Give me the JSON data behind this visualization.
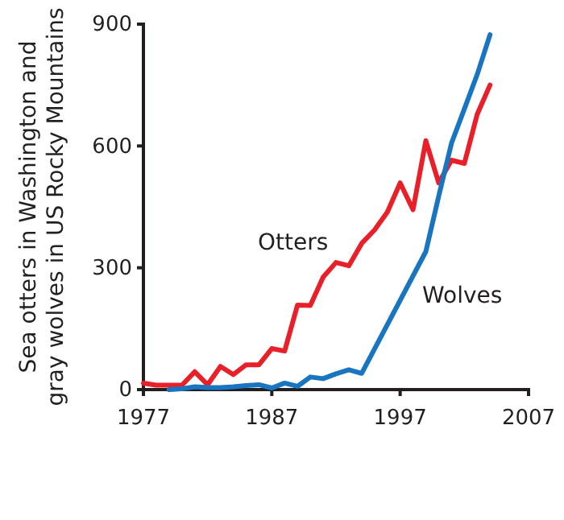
{
  "chart_data": {
    "type": "line",
    "ylabel": "Sea otters in Washington and\ngray wolves in US Rocky Mountains",
    "xlim": [
      1977,
      2007
    ],
    "xticks": [
      1977,
      1987,
      1997,
      2007
    ],
    "ylim": [
      0,
      900
    ],
    "yticks": [
      0,
      300,
      600,
      900
    ],
    "grid": false,
    "legend": false,
    "marker": "none",
    "line_style": "solid",
    "series": [
      {
        "name": "Otters",
        "color": "#e8202a",
        "x": [
          1977,
          1978,
          1979,
          1980,
          1981,
          1982,
          1983,
          1984,
          1985,
          1986,
          1987,
          1988,
          1989,
          1990,
          1991,
          1992,
          1993,
          1994,
          1995,
          1996,
          1997,
          1998,
          1999,
          2000,
          2001,
          2002,
          2003,
          2004
        ],
        "values": [
          16,
          11,
          11,
          11,
          44,
          12,
          57,
          37,
          61,
          61,
          101,
          95,
          208,
          207,
          277,
          313,
          305,
          360,
          393,
          437,
          509,
          443,
          613,
          509,
          565,
          557,
          678,
          750
        ]
      },
      {
        "name": "Wolves",
        "color": "#1a75c0",
        "x": [
          1979,
          1980,
          1981,
          1982,
          1983,
          1984,
          1985,
          1986,
          1987,
          1988,
          1989,
          1990,
          1991,
          1992,
          1993,
          1994,
          1999,
          2000,
          2001,
          2002,
          2003,
          2004
        ],
        "values": [
          0,
          2,
          7,
          5,
          5,
          7,
          10,
          12,
          4,
          16,
          8,
          31,
          27,
          39,
          49,
          40,
          340,
          476,
          607,
          691,
          776,
          874
        ]
      }
    ]
  }
}
